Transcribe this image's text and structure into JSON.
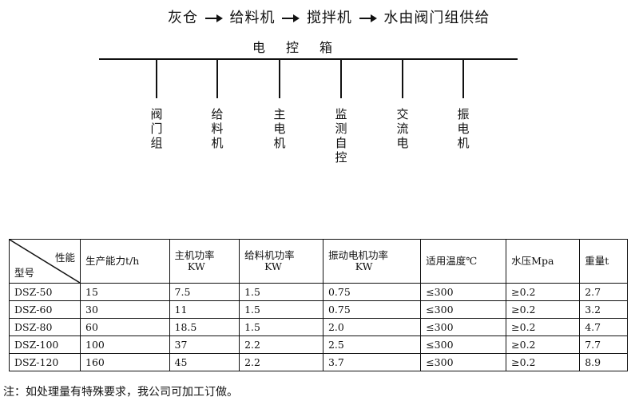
{
  "flow": {
    "steps": [
      "灰仓",
      "给料机",
      "搅拌机",
      "水由阀门组供给"
    ]
  },
  "control_box": {
    "title": "电控箱",
    "branches": [
      {
        "label": "阀\n门\n组"
      },
      {
        "label": "给\n料\n机"
      },
      {
        "label": "主\n电\n机"
      },
      {
        "label": "监\n测\n自\n控"
      },
      {
        "label": "交\n流\n电"
      },
      {
        "label": "振\n电\n机"
      }
    ]
  },
  "table": {
    "corner_top": "性能",
    "corner_bottom": "型号",
    "headers": [
      {
        "main": "生产能力t/h",
        "unit": ""
      },
      {
        "main": "主机功率",
        "unit": "KW"
      },
      {
        "main": "给料机功率",
        "unit": "KW"
      },
      {
        "main": "振动电机功率",
        "unit": "KW"
      },
      {
        "main": "适用温度℃",
        "unit": ""
      },
      {
        "main": "水压Mpa",
        "unit": ""
      },
      {
        "main": "重量t",
        "unit": ""
      }
    ],
    "rows": [
      [
        "DSZ-50",
        "15",
        "7.5",
        "1.5",
        "0.75",
        "≤300",
        "≥0.2",
        "2.7"
      ],
      [
        "DSZ-60",
        "30",
        "11",
        "1.5",
        "0.75",
        "≤300",
        "≥0.2",
        "3.2"
      ],
      [
        "DSZ-80",
        "60",
        "18.5",
        "1.5",
        "2.0",
        "≤300",
        "≥0.2",
        "4.7"
      ],
      [
        "DSZ-100",
        "100",
        "37",
        "2.2",
        "2.5",
        "≤300",
        "≥0.2",
        "7.7"
      ],
      [
        "DSZ-120",
        "160",
        "45",
        "2.2",
        "3.7",
        "≤300",
        "≥0.2",
        "8.9"
      ]
    ]
  },
  "note": "注：如处理量有特殊要求，我公司可加工订做。"
}
